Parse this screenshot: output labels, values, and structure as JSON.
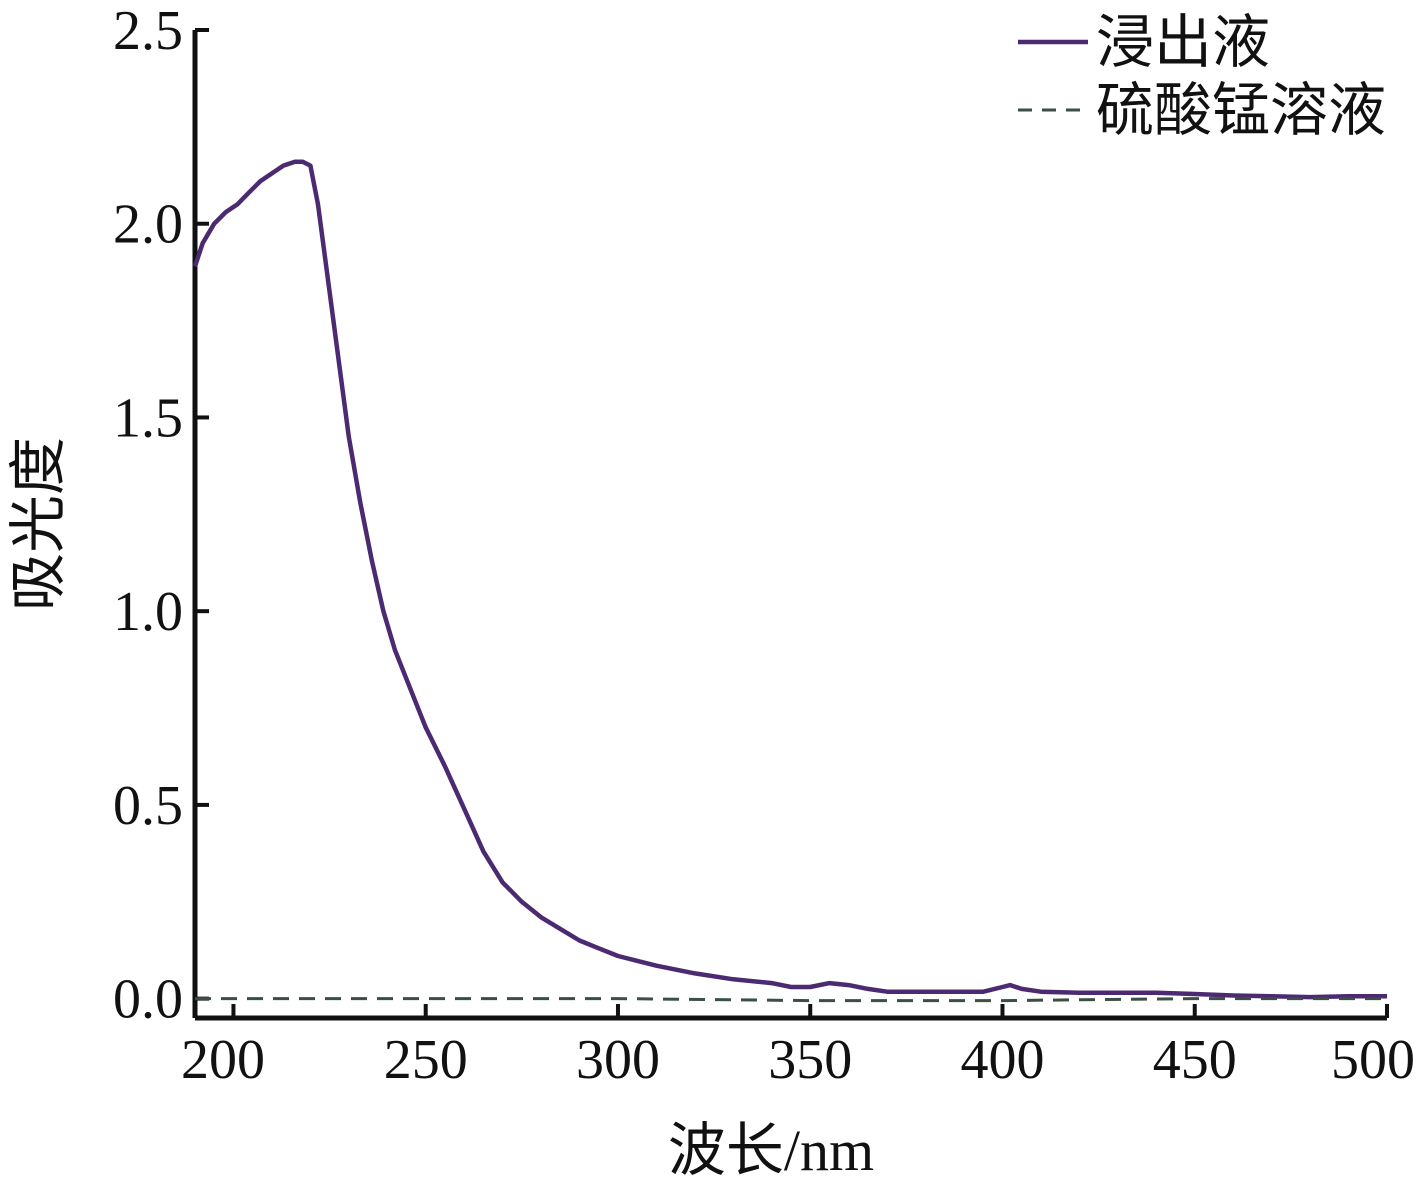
{
  "chart_data": {
    "type": "line",
    "xlabel": "波长/nm",
    "ylabel": "吸光度",
    "xlim": [
      190,
      500
    ],
    "ylim": [
      -0.05,
      2.5
    ],
    "xticks": [
      200,
      250,
      300,
      350,
      400,
      450,
      500
    ],
    "yticks": [
      0.0,
      0.5,
      1.0,
      1.5,
      2.0,
      2.5
    ],
    "xtick_labels": [
      "200",
      "250",
      "300",
      "350",
      "400",
      "450",
      "500"
    ],
    "ytick_labels": [
      "0.0",
      "0.5",
      "1.0",
      "1.5",
      "2.0",
      "2.5"
    ],
    "grid": false,
    "legend_position": "top-right",
    "series": [
      {
        "name": "浸出液",
        "style": "solid",
        "color": "#4b2a72",
        "points": [
          [
            190,
            1.89
          ],
          [
            192,
            1.95
          ],
          [
            195,
            2.0
          ],
          [
            198,
            2.03
          ],
          [
            201,
            2.05
          ],
          [
            204,
            2.08
          ],
          [
            207,
            2.11
          ],
          [
            210,
            2.13
          ],
          [
            213,
            2.15
          ],
          [
            216,
            2.16
          ],
          [
            218,
            2.16
          ],
          [
            220,
            2.15
          ],
          [
            222,
            2.05
          ],
          [
            224,
            1.9
          ],
          [
            226,
            1.75
          ],
          [
            228,
            1.6
          ],
          [
            230,
            1.45
          ],
          [
            233,
            1.28
          ],
          [
            236,
            1.13
          ],
          [
            239,
            1.0
          ],
          [
            242,
            0.9
          ],
          [
            246,
            0.8
          ],
          [
            250,
            0.7
          ],
          [
            255,
            0.6
          ],
          [
            260,
            0.49
          ],
          [
            265,
            0.38
          ],
          [
            270,
            0.3
          ],
          [
            275,
            0.25
          ],
          [
            280,
            0.21
          ],
          [
            285,
            0.18
          ],
          [
            290,
            0.15
          ],
          [
            295,
            0.13
          ],
          [
            300,
            0.11
          ],
          [
            310,
            0.085
          ],
          [
            320,
            0.065
          ],
          [
            330,
            0.05
          ],
          [
            340,
            0.04
          ],
          [
            345,
            0.03
          ],
          [
            350,
            0.03
          ],
          [
            355,
            0.04
          ],
          [
            360,
            0.035
          ],
          [
            365,
            0.025
          ],
          [
            370,
            0.018
          ],
          [
            380,
            0.018
          ],
          [
            390,
            0.018
          ],
          [
            395,
            0.018
          ],
          [
            400,
            0.03
          ],
          [
            402,
            0.035
          ],
          [
            405,
            0.025
          ],
          [
            410,
            0.018
          ],
          [
            420,
            0.015
          ],
          [
            430,
            0.015
          ],
          [
            440,
            0.015
          ],
          [
            450,
            0.012
          ],
          [
            460,
            0.008
          ],
          [
            470,
            0.006
          ],
          [
            480,
            0.004
          ],
          [
            490,
            0.006
          ],
          [
            500,
            0.006
          ]
        ]
      },
      {
        "name": "硫酸锰溶液",
        "style": "dashed",
        "color": "#3b4f45",
        "points": [
          [
            190,
            0.0
          ],
          [
            250,
            0.0
          ],
          [
            300,
            0.0
          ],
          [
            350,
            -0.005
          ],
          [
            400,
            -0.005
          ],
          [
            450,
            0.0
          ],
          [
            500,
            0.0
          ]
        ]
      }
    ]
  }
}
